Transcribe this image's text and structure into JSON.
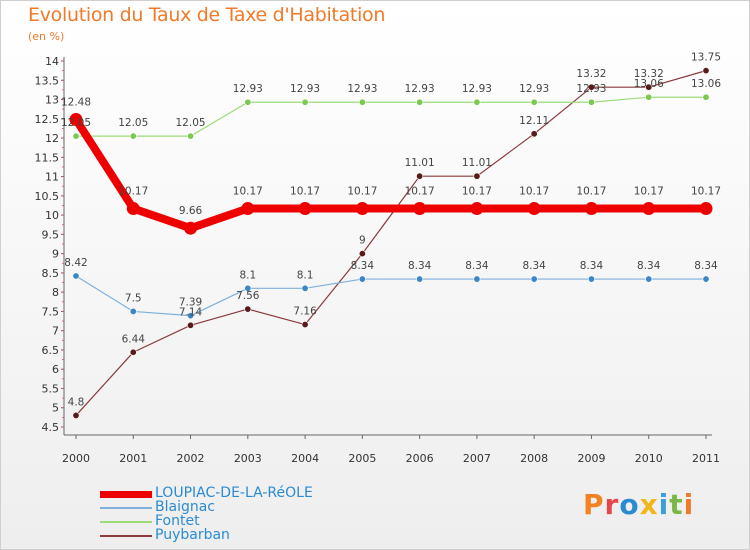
{
  "title": "Evolution du Taux de Taxe d'Habitation",
  "subtitle": "(en %)",
  "logo": {
    "letters": [
      "P",
      "r",
      "o",
      "x",
      "i",
      "t",
      "i"
    ],
    "colors": [
      "#f58220",
      "#e8474b",
      "#2a8bd0",
      "#f3b51b",
      "#3a9fd9",
      "#7ab648",
      "#ef7b2a"
    ]
  },
  "chart_data": {
    "type": "line",
    "title": "Evolution du Taux de Taxe d'Habitation",
    "ylabel": "(en %)",
    "xlabel": "",
    "categories": [
      "2000",
      "2001",
      "2002",
      "2003",
      "2004",
      "2005",
      "2006",
      "2007",
      "2008",
      "2009",
      "2010",
      "2011"
    ],
    "ylim": [
      4.5,
      14
    ],
    "yticks": [
      "4.5",
      "5",
      "5.5",
      "6",
      "6.5",
      "7",
      "7.5",
      "8",
      "8.5",
      "9",
      "9.5",
      "10",
      "10.5",
      "11",
      "11.5",
      "12",
      "12.5",
      "13",
      "13.5",
      "14"
    ],
    "grid": false,
    "legend_position": "bottom-left",
    "series": [
      {
        "name": "LOUPIAC-DE-LA-RéOLE",
        "color": "#ee0000",
        "line_color": "#ee0000",
        "marker_color": "#ee0000",
        "heavy": true,
        "values": [
          12.48,
          10.17,
          9.66,
          10.17,
          10.17,
          10.17,
          10.17,
          10.17,
          10.17,
          10.17,
          10.17,
          10.17
        ],
        "labels": [
          "12.48",
          "10.17",
          "9.66",
          "10.17",
          "10.17",
          "10.17",
          "10.17",
          "10.17",
          "10.17",
          "10.17",
          "10.17",
          "10.17"
        ]
      },
      {
        "name": "Blaignac",
        "color": "#6a9fd0",
        "line_color": "#7fb0dc",
        "marker_color": "#3d86c6",
        "heavy": false,
        "values": [
          8.42,
          7.5,
          7.39,
          8.1,
          8.1,
          8.34,
          8.34,
          8.34,
          8.34,
          8.34,
          8.34,
          8.34
        ],
        "labels": [
          "8.42",
          "7.5",
          "7.39",
          "8.1",
          "8.1",
          "8.34",
          "8.34",
          "8.34",
          "8.34",
          "8.34",
          "8.34",
          "8.34"
        ]
      },
      {
        "name": "Fontet",
        "color": "#8dd36a",
        "line_color": "#9bdc78",
        "marker_color": "#7dc850",
        "heavy": false,
        "values": [
          12.05,
          12.05,
          12.05,
          12.93,
          12.93,
          12.93,
          12.93,
          12.93,
          12.93,
          12.93,
          13.06,
          13.06
        ],
        "labels": [
          "12.05",
          "12.05",
          "12.05",
          "12.93",
          "12.93",
          "12.93",
          "12.93",
          "12.93",
          "12.93",
          "12.93",
          "13.06",
          "13.06"
        ]
      },
      {
        "name": "Puybarban",
        "color": "#8a2f2f",
        "line_color": "#8a3a3a",
        "marker_color": "#5a1a1a",
        "heavy": false,
        "values": [
          4.8,
          6.44,
          7.14,
          7.56,
          7.16,
          9,
          11.01,
          11.01,
          12.11,
          13.32,
          13.32,
          13.75
        ],
        "labels": [
          "4.8",
          "6.44",
          "7.14",
          "7.56",
          "7.16",
          "9",
          "11.01",
          "11.01",
          "12.11",
          "13.32",
          "13.32",
          "13.75"
        ]
      }
    ]
  }
}
